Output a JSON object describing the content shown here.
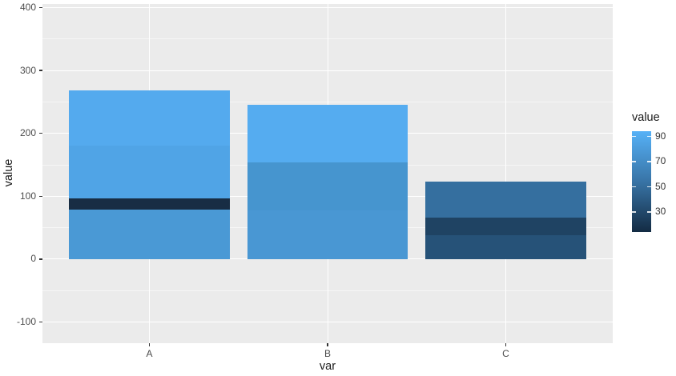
{
  "figure": {
    "background": "#ffffff",
    "panel_background": "#ebebeb",
    "gridline_color": "#ffffff",
    "tick_color": "#333333",
    "tick_label_color": "#4d4d4d",
    "title_color": "#1a1a1a"
  },
  "chart_data": {
    "type": "bar",
    "subtype": "stacked",
    "title": "",
    "xlabel": "var",
    "ylabel": "value",
    "categories": [
      "A",
      "B",
      "C"
    ],
    "y_major_ticks": [
      400,
      300,
      200,
      100,
      0,
      -100
    ],
    "y_minor_ticks": [
      350,
      250,
      150,
      50,
      -50
    ],
    "ylim": [
      -134,
      406
    ],
    "grid": true,
    "bars": [
      {
        "category": "A",
        "total": 268,
        "segments": [
          {
            "value": 79,
            "color": "#4A99D5"
          },
          {
            "value": 17,
            "color": "#182D44"
          },
          {
            "value": 84,
            "color": "#50A4E6"
          },
          {
            "value": 88,
            "color": "#54AAEE"
          }
        ]
      },
      {
        "category": "B",
        "total": 245,
        "segments": [
          {
            "value": 78,
            "color": "#4997D3"
          },
          {
            "value": 76,
            "color": "#4695CF"
          },
          {
            "value": 91,
            "color": "#55ACF0"
          }
        ]
      },
      {
        "category": "C",
        "total": 123,
        "segments": [
          {
            "value": 38,
            "color": "#265278"
          },
          {
            "value": 28,
            "color": "#1F4363"
          },
          {
            "value": 57,
            "color": "#356F9F"
          }
        ]
      }
    ],
    "legend": {
      "title": "value",
      "position": "right",
      "type": "colorbar",
      "min": 14,
      "max": 94,
      "ticks": [
        90,
        70,
        50,
        30
      ],
      "color_low": "#132B43",
      "color_mid": "#3874A6",
      "color_high": "#56B1F7"
    }
  }
}
